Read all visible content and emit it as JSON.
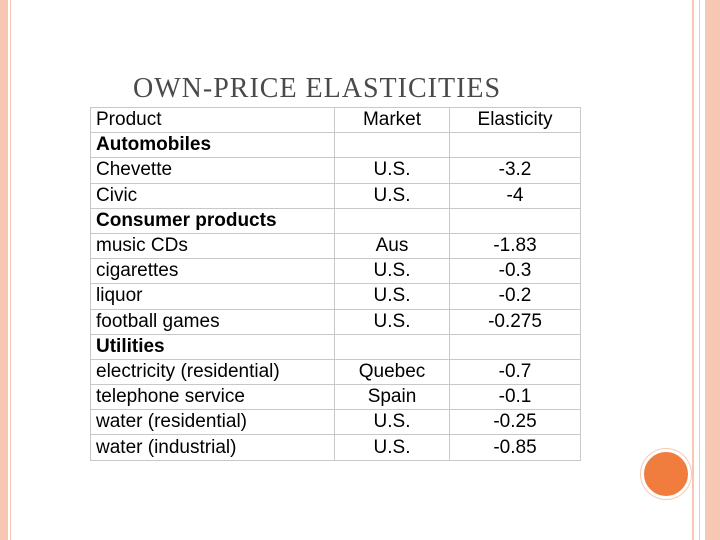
{
  "slide": {
    "title": "OWN-PRICE ELASTICITIES"
  },
  "table": {
    "headers": [
      "Product",
      "Market",
      "Elasticity"
    ],
    "rows": [
      {
        "product": "Automobiles",
        "market": "",
        "elasticity": "",
        "section": true
      },
      {
        "product": "Chevette",
        "market": "U.S.",
        "elasticity": "-3.2"
      },
      {
        "product": "Civic",
        "market": "U.S.",
        "elasticity": "-4"
      },
      {
        "product": "Consumer products",
        "market": "",
        "elasticity": "",
        "section": true
      },
      {
        "product": "music CDs",
        "market": "Aus",
        "elasticity": "-1.83"
      },
      {
        "product": "cigarettes",
        "market": "U.S.",
        "elasticity": "-0.3"
      },
      {
        "product": "liquor",
        "market": "U.S.",
        "elasticity": "-0.2"
      },
      {
        "product": "football games",
        "market": "U.S.",
        "elasticity": "-0.275"
      },
      {
        "product": "Utilities",
        "market": "",
        "elasticity": "",
        "section": true
      },
      {
        "product": "electricity (residential)",
        "market": "Quebec",
        "elasticity": "-0.7"
      },
      {
        "product": "telephone service",
        "market": "Spain",
        "elasticity": "-0.1"
      },
      {
        "product": "water (residential)",
        "market": "U.S.",
        "elasticity": "-0.25"
      },
      {
        "product": "water (industrial)",
        "market": "U.S.",
        "elasticity": "-0.85"
      }
    ]
  },
  "colors": {
    "border_accent": "#f6c8b4",
    "circle_accent": "#f07c3e"
  }
}
